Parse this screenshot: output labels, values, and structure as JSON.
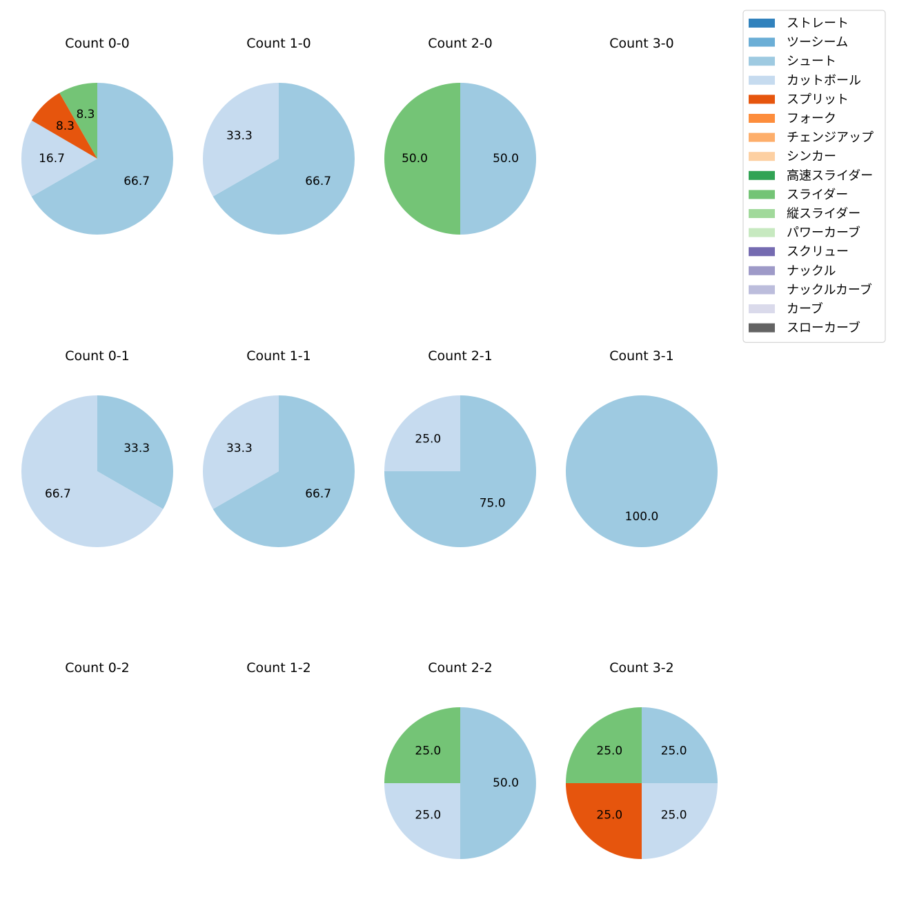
{
  "chart_data": {
    "type": "pie",
    "legend": {
      "placement": "top-right",
      "entries": [
        {
          "label": "ストレート",
          "color": "#3182bd"
        },
        {
          "label": "ツーシーム",
          "color": "#6baed6"
        },
        {
          "label": "シュート",
          "color": "#9ecae1"
        },
        {
          "label": "カットボール",
          "color": "#c6dbef"
        },
        {
          "label": "スプリット",
          "color": "#e6550d"
        },
        {
          "label": "フォーク",
          "color": "#fd8d3c"
        },
        {
          "label": "チェンジアップ",
          "color": "#fdae6b"
        },
        {
          "label": "シンカー",
          "color": "#fdd0a2"
        },
        {
          "label": "高速スライダー",
          "color": "#31a354"
        },
        {
          "label": "スライダー",
          "color": "#74c476"
        },
        {
          "label": "縦スライダー",
          "color": "#a1d99b"
        },
        {
          "label": "パワーカーブ",
          "color": "#c7e9c0"
        },
        {
          "label": "スクリュー",
          "color": "#756bb1"
        },
        {
          "label": "ナックル",
          "color": "#9e9ac8"
        },
        {
          "label": "ナックルカーブ",
          "color": "#bcbddc"
        },
        {
          "label": "カーブ",
          "color": "#dadaeb"
        },
        {
          "label": "スローカーブ",
          "color": "#636363"
        }
      ]
    },
    "pies": [
      {
        "title": "Count 0-0",
        "slices": [
          {
            "pitch": "シュート",
            "value": 66.7
          },
          {
            "pitch": "カットボール",
            "value": 16.7
          },
          {
            "pitch": "スプリット",
            "value": 8.3
          },
          {
            "pitch": "スライダー",
            "value": 8.3
          }
        ]
      },
      {
        "title": "Count 1-0",
        "slices": [
          {
            "pitch": "シュート",
            "value": 66.7
          },
          {
            "pitch": "カットボール",
            "value": 33.3
          }
        ]
      },
      {
        "title": "Count 2-0",
        "slices": [
          {
            "pitch": "シュート",
            "value": 50.0
          },
          {
            "pitch": "スライダー",
            "value": 50.0
          }
        ]
      },
      {
        "title": "Count 3-0",
        "slices": []
      },
      {
        "title": "Count 0-1",
        "slices": [
          {
            "pitch": "シュート",
            "value": 33.3
          },
          {
            "pitch": "カットボール",
            "value": 66.7
          }
        ]
      },
      {
        "title": "Count 1-1",
        "slices": [
          {
            "pitch": "シュート",
            "value": 66.7
          },
          {
            "pitch": "カットボール",
            "value": 33.3
          }
        ]
      },
      {
        "title": "Count 2-1",
        "slices": [
          {
            "pitch": "シュート",
            "value": 75.0
          },
          {
            "pitch": "カットボール",
            "value": 25.0
          }
        ]
      },
      {
        "title": "Count 3-1",
        "slices": [
          {
            "pitch": "シュート",
            "value": 100.0
          }
        ]
      },
      {
        "title": "Count 0-2",
        "slices": []
      },
      {
        "title": "Count 1-2",
        "slices": []
      },
      {
        "title": "Count 2-2",
        "slices": [
          {
            "pitch": "シュート",
            "value": 50.0
          },
          {
            "pitch": "カットボール",
            "value": 25.0
          },
          {
            "pitch": "スライダー",
            "value": 25.0
          }
        ]
      },
      {
        "title": "Count 3-2",
        "slices": [
          {
            "pitch": "シュート",
            "value": 25.0
          },
          {
            "pitch": "カットボール",
            "value": 25.0
          },
          {
            "pitch": "スプリット",
            "value": 25.0
          },
          {
            "pitch": "スライダー",
            "value": 25.0
          }
        ]
      }
    ]
  }
}
